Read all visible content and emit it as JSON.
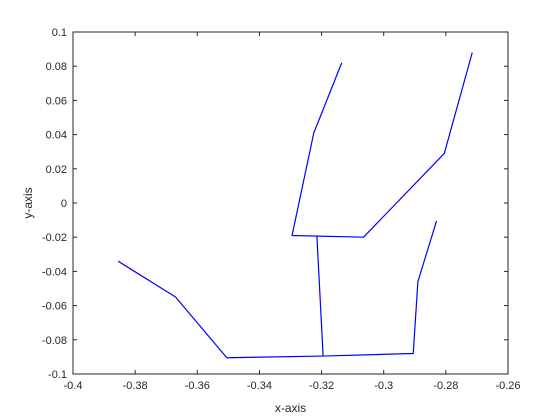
{
  "chart_data": {
    "type": "line",
    "xlabel": "x-axis",
    "ylabel": "y-axis",
    "xlim": [
      -0.4,
      -0.26
    ],
    "ylim": [
      -0.1,
      0.1
    ],
    "grid": false,
    "x_ticks": [
      -0.4,
      -0.38,
      -0.36,
      -0.34,
      -0.32,
      -0.3,
      -0.28,
      -0.26
    ],
    "x_tick_labels": [
      "-0.4",
      "-0.38",
      "-0.36",
      "-0.34",
      "-0.32",
      "-0.3",
      "-0.28",
      "-0.26"
    ],
    "y_ticks": [
      0.1,
      0.08,
      0.06,
      0.04,
      0.02,
      0,
      -0.02,
      -0.04,
      -0.06,
      -0.08,
      -0.1
    ],
    "y_tick_labels": [
      "0.1",
      "0.08",
      "0.06",
      "0.04",
      "0.02",
      "0",
      "-0.02",
      "-0.04",
      "-0.06",
      "-0.08",
      "-0.1"
    ],
    "series_color": "#0000ff",
    "series": [
      {
        "x": [
          -0.3855,
          -0.367,
          -0.3505,
          -0.3195,
          -0.2905,
          -0.289,
          -0.283
        ],
        "y": [
          -0.034,
          -0.055,
          -0.0905,
          -0.0895,
          -0.088,
          -0.046,
          -0.0105
        ]
      },
      {
        "x": [
          -0.3195,
          -0.3215
        ],
        "y": [
          -0.0895,
          -0.0195
        ]
      },
      {
        "x": [
          -0.3135,
          -0.3225,
          -0.3295,
          -0.3065,
          -0.2805,
          -0.2715
        ],
        "y": [
          0.082,
          0.041,
          -0.019,
          -0.02,
          0.029,
          0.088
        ]
      }
    ]
  }
}
